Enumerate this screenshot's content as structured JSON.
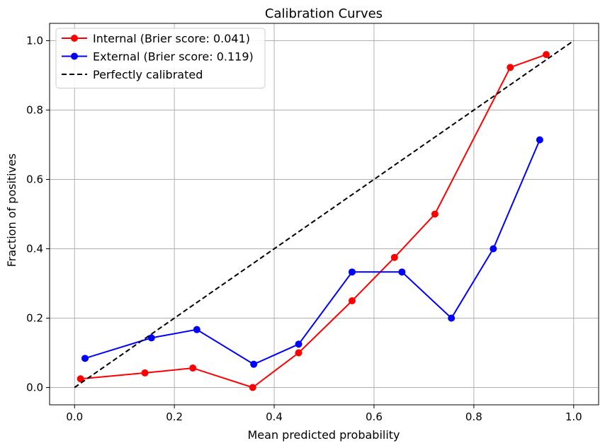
{
  "chart_data": {
    "type": "line",
    "title": "Calibration Curves",
    "xlabel": "Mean predicted probability",
    "ylabel": "Fraction of positives",
    "xlim": [
      -0.05,
      1.05
    ],
    "ylim": [
      -0.05,
      1.05
    ],
    "xticks": [
      0.0,
      0.2,
      0.4,
      0.6,
      0.8,
      1.0
    ],
    "yticks": [
      0.0,
      0.2,
      0.4,
      0.6,
      0.8,
      1.0
    ],
    "tick_labels_x": [
      "0.0",
      "0.2",
      "0.4",
      "0.6",
      "0.8",
      "1.0"
    ],
    "tick_labels_y": [
      "0.0",
      "0.2",
      "0.4",
      "0.6",
      "0.8",
      "1.0"
    ],
    "grid": true,
    "legend_position": "top-left",
    "series": [
      {
        "name": "Internal (Brier score: 0.041)",
        "color": "#ff0000",
        "style": "solid",
        "marker": "circle",
        "x": [
          0.012,
          0.141,
          0.237,
          0.357,
          0.449,
          0.556,
          0.641,
          0.722,
          0.873,
          0.945
        ],
        "y": [
          0.025,
          0.042,
          0.056,
          0.0,
          0.1,
          0.25,
          0.375,
          0.5,
          0.923,
          0.96
        ]
      },
      {
        "name": "External (Brier score: 0.119)",
        "color": "#0000ff",
        "style": "solid",
        "marker": "circle",
        "x": [
          0.021,
          0.154,
          0.245,
          0.359,
          0.449,
          0.556,
          0.656,
          0.755,
          0.839,
          0.932
        ],
        "y": [
          0.084,
          0.143,
          0.167,
          0.067,
          0.125,
          0.333,
          0.333,
          0.2,
          0.4,
          0.714
        ]
      },
      {
        "name": "Perfectly calibrated",
        "color": "#000000",
        "style": "dashed",
        "marker": "none",
        "x": [
          0.0,
          1.0
        ],
        "y": [
          0.0,
          1.0
        ]
      }
    ]
  }
}
